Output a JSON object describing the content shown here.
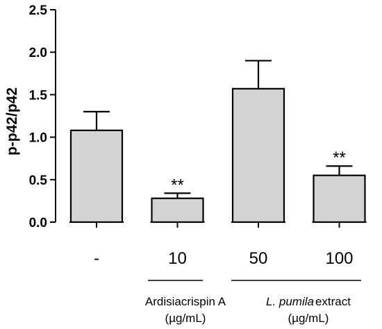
{
  "chart_data": {
    "type": "bar",
    "categories": [
      "-",
      "10",
      "50",
      "100"
    ],
    "values": [
      1.08,
      0.28,
      1.57,
      0.55
    ],
    "errors": [
      0.22,
      0.06,
      0.33,
      0.11
    ],
    "significance": [
      "",
      "**",
      "",
      "**"
    ],
    "ylabel": "p-p42/p42",
    "ylim": [
      0,
      2.5
    ],
    "yticks": [
      0.0,
      0.5,
      1.0,
      1.5,
      2.0,
      2.5
    ],
    "ytick_labels": [
      "0.0",
      "0.5",
      "1.0",
      "1.5",
      "2.0",
      "2.5"
    ],
    "bar_color": "#d3d3d3",
    "groups": [
      {
        "line1": "Ardisiacrispin A",
        "line2": "(µg/mL)"
      },
      {
        "line1_italic": "L. pumila",
        "line1_rest": "extract",
        "line2": "(µg/mL)"
      }
    ]
  }
}
